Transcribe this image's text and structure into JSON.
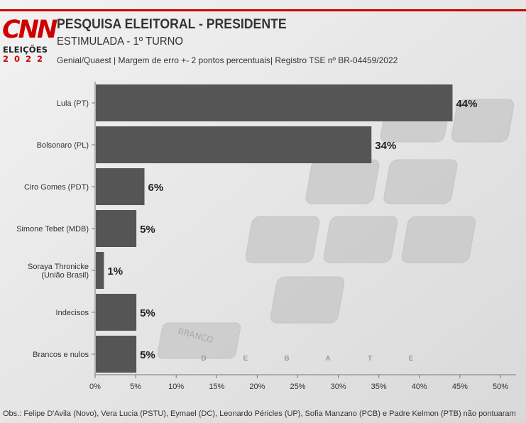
{
  "header": {
    "logo_text": "CNN",
    "logo_sub": "ELEIÇÕES",
    "logo_year": "2022",
    "title": "PESQUISA ELEITORAL - PRESIDENTE",
    "subtitle": "ESTIMULADA - 1º TURNO",
    "source": "Genial/Quaest | Margem de erro +- 2 pontos percentuais| Registro TSE nº BR-04459/2022"
  },
  "footer": {
    "note": "Obs.: Felipe D'Avila (Novo), Vera Lucia (PSTU), Eymael (DC), Leonardo Péricles (UP), Sofia Manzano (PCB) e Padre Kelmon (PTB) não pontuaram"
  },
  "background": {
    "watermark_letters": [
      "D",
      "E",
      "B",
      "A",
      "T",
      "E"
    ],
    "key_label": "BRANCO"
  },
  "chart_data": {
    "type": "bar",
    "orientation": "horizontal",
    "categories": [
      "Lula (PT)",
      "Bolsonaro (PL)",
      "Ciro Gomes (PDT)",
      "Simone Tebet (MDB)",
      "Soraya Thronicke (União Brasil)",
      "Indecisos",
      "Brancos e nulos"
    ],
    "values": [
      44,
      34,
      6,
      5,
      1,
      5,
      5
    ],
    "value_labels": [
      "44%",
      "34%",
      "6%",
      "5%",
      "1%",
      "5%",
      "5%"
    ],
    "xticks": [
      "0%",
      "5%",
      "10%",
      "15%",
      "20%",
      "25%",
      "30%",
      "35%",
      "40%",
      "45%",
      "50%"
    ],
    "xlim": [
      0,
      52
    ],
    "bar_color": "#555555",
    "grid": false
  }
}
